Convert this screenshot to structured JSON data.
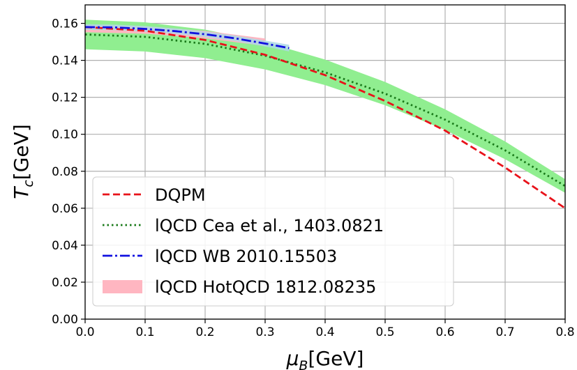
{
  "chart_data": {
    "type": "line",
    "xlabel_main": "μ",
    "xlabel_sub": "B",
    "xlabel_unit": "[GeV]",
    "ylabel_main": "T",
    "ylabel_sub": "c",
    "ylabel_unit": "[GeV]",
    "xlim": [
      0.0,
      0.8
    ],
    "ylim": [
      0.0,
      0.17
    ],
    "x_ticks": [
      "0.0",
      "0.1",
      "0.2",
      "0.3",
      "0.4",
      "0.5",
      "0.6",
      "0.7",
      "0.8"
    ],
    "y_ticks": [
      "0.00",
      "0.02",
      "0.04",
      "0.06",
      "0.08",
      "0.10",
      "0.12",
      "0.14",
      "0.16"
    ],
    "grid": true,
    "legend_position": "lower-left",
    "series": [
      {
        "name": "DQPM",
        "style": "dashed",
        "color": "#e8121a",
        "x": [
          0.0,
          0.1,
          0.2,
          0.3,
          0.4,
          0.5,
          0.6,
          0.7,
          0.8
        ],
        "y": [
          0.158,
          0.156,
          0.151,
          0.143,
          0.132,
          0.118,
          0.102,
          0.082,
          0.06
        ]
      },
      {
        "name": "lQCD Cea et al., 1403.0821",
        "style": "dotted",
        "color": "#1a7a1a",
        "band_color": "#90ee90",
        "x": [
          0.0,
          0.1,
          0.2,
          0.3,
          0.4,
          0.5,
          0.6,
          0.7,
          0.8
        ],
        "y": [
          0.154,
          0.1527,
          0.1489,
          0.1425,
          0.1335,
          0.122,
          0.1079,
          0.0913,
          0.072
        ],
        "y_low": [
          0.146,
          0.1448,
          0.1412,
          0.1351,
          0.1266,
          0.1157,
          0.1023,
          0.0865,
          0.0683
        ],
        "y_high": [
          0.162,
          0.1606,
          0.1566,
          0.1499,
          0.1404,
          0.1283,
          0.1135,
          0.0961,
          0.0757
        ]
      },
      {
        "name": "lQCD WB 2010.15503",
        "style": "dashdot",
        "color": "#1010e0",
        "band_color": "#add8e6",
        "x": [
          0.0,
          0.05,
          0.1,
          0.15,
          0.2,
          0.25,
          0.3,
          0.34
        ],
        "y": [
          0.158,
          0.1578,
          0.157,
          0.1558,
          0.1541,
          0.1519,
          0.1491,
          0.1466
        ],
        "y_low": [
          0.1565,
          0.1563,
          0.1555,
          0.1543,
          0.1526,
          0.1504,
          0.1475,
          0.1448
        ],
        "y_high": [
          0.1595,
          0.1593,
          0.1585,
          0.1573,
          0.1556,
          0.1534,
          0.1507,
          0.1484
        ]
      },
      {
        "name": "lQCD HotQCD 1812.08235",
        "style": "band",
        "color": "#ffb6c1",
        "x": [
          0.0,
          0.1,
          0.2,
          0.3
        ],
        "y_low": [
          0.1552,
          0.1544,
          0.1519,
          0.1478
        ],
        "y_high": [
          0.1592,
          0.1584,
          0.1559,
          0.1518
        ]
      }
    ]
  }
}
